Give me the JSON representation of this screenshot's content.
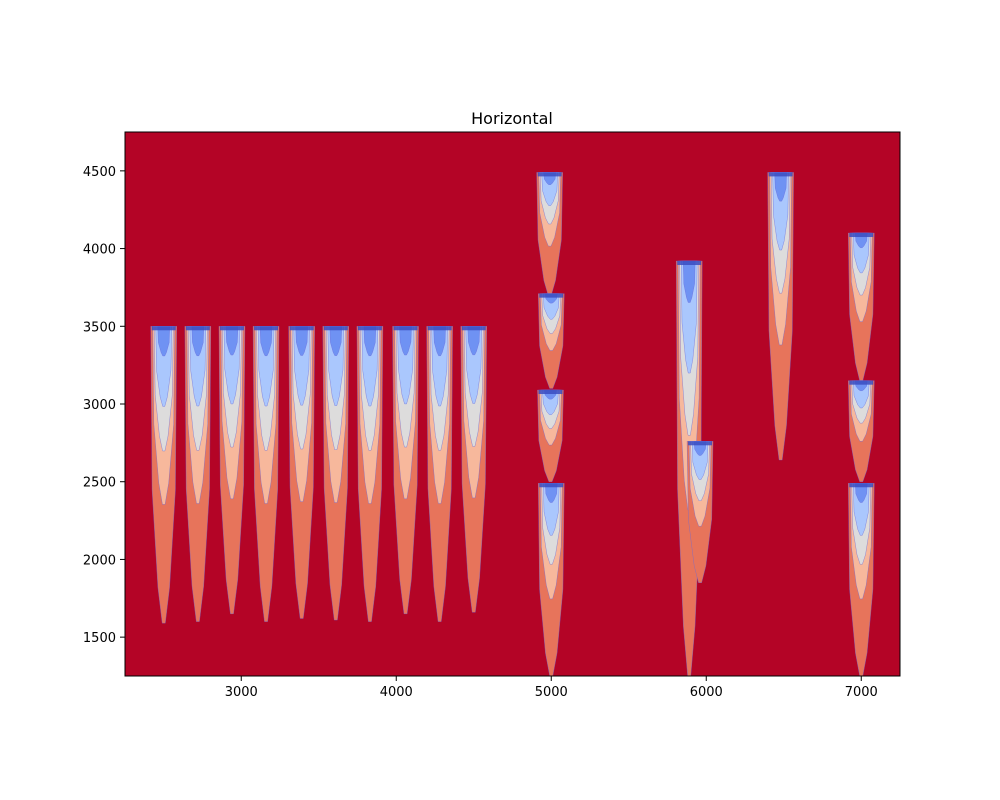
{
  "chart_data": {
    "type": "heatmap",
    "title": "Horizontal",
    "xlabel": "",
    "ylabel": "",
    "xlim": [
      2250,
      7250
    ],
    "ylim": [
      1250,
      4750
    ],
    "xticks": [
      3000,
      4000,
      5000,
      6000,
      7000
    ],
    "yticks": [
      1500,
      2000,
      2500,
      3000,
      3500,
      4000,
      4500
    ],
    "grid": false,
    "colormap": "coolwarm",
    "background_color": "#b40426",
    "level_colors": [
      "#3b4cc0",
      "#6f92f3",
      "#aac7fd",
      "#dddcdc",
      "#f7b89c",
      "#e7745b",
      "#b40426"
    ],
    "plumes": [
      {
        "x": 2500,
        "top": 3500,
        "bottom": 1590
      },
      {
        "x": 2720,
        "top": 3500,
        "bottom": 1600
      },
      {
        "x": 2940,
        "top": 3500,
        "bottom": 1650
      },
      {
        "x": 3160,
        "top": 3500,
        "bottom": 1600
      },
      {
        "x": 3390,
        "top": 3500,
        "bottom": 1620
      },
      {
        "x": 3610,
        "top": 3500,
        "bottom": 1610
      },
      {
        "x": 3830,
        "top": 3500,
        "bottom": 1600
      },
      {
        "x": 4060,
        "top": 3500,
        "bottom": 1650
      },
      {
        "x": 4280,
        "top": 3500,
        "bottom": 1600
      },
      {
        "x": 4500,
        "top": 3500,
        "bottom": 1660
      },
      {
        "x": 4990,
        "top": 4490,
        "bottom": 3700
      },
      {
        "x": 5000,
        "top": 3710,
        "bottom": 3100
      },
      {
        "x": 4995,
        "top": 3090,
        "bottom": 2500
      },
      {
        "x": 5000,
        "top": 2490,
        "bottom": 1250
      },
      {
        "x": 5890,
        "top": 3920,
        "bottom": 1250
      },
      {
        "x": 5960,
        "top": 2760,
        "bottom": 1850
      },
      {
        "x": 6480,
        "top": 4490,
        "bottom": 2640
      },
      {
        "x": 7000,
        "top": 4100,
        "bottom": 3150
      },
      {
        "x": 7000,
        "top": 3150,
        "bottom": 2500
      },
      {
        "x": 7000,
        "top": 2490,
        "bottom": 1250
      }
    ]
  }
}
